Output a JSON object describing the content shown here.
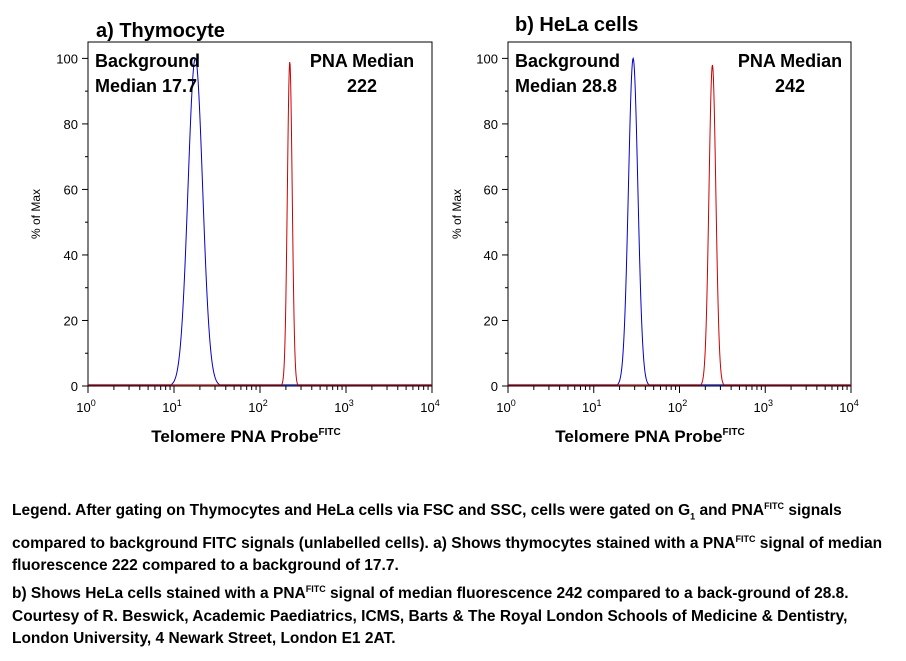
{
  "chart_data": [
    {
      "type": "line",
      "title": "a) Thymocyte",
      "xlabel": "Telomere PNA Probe",
      "xlabel_sup": "FITC",
      "ylabel": "% of Max",
      "xscale": "log",
      "xlim": [
        1,
        10000
      ],
      "ylim": [
        0,
        105
      ],
      "yticks": [
        0,
        20,
        40,
        60,
        80,
        100
      ],
      "xticks": [
        {
          "base": "10",
          "exp": "0"
        },
        {
          "base": "10",
          "exp": "1"
        },
        {
          "base": "10",
          "exp": "2"
        },
        {
          "base": "10",
          "exp": "3"
        },
        {
          "base": "10",
          "exp": "4"
        }
      ],
      "annotations": {
        "background_line1": "Background",
        "background_line2": "Median 17.7",
        "pna_line1": "PNA Median",
        "pna_line2": "222"
      },
      "series": [
        {
          "color": "#0000cc",
          "median": 17.7,
          "peak": 100,
          "width_decades": 0.085
        },
        {
          "color": "#cc0000",
          "median": 222,
          "peak": 99,
          "width_decades": 0.028
        }
      ]
    },
    {
      "type": "line",
      "title": "b) HeLa cells",
      "xlabel": "Telomere PNA Probe",
      "xlabel_sup": "FITC",
      "ylabel": "% of Max",
      "xscale": "log",
      "xlim": [
        1,
        10000
      ],
      "ylim": [
        0,
        105
      ],
      "yticks": [
        0,
        20,
        40,
        60,
        80,
        100
      ],
      "xticks": [
        {
          "base": "10",
          "exp": "0"
        },
        {
          "base": "10",
          "exp": "1"
        },
        {
          "base": "10",
          "exp": "2"
        },
        {
          "base": "10",
          "exp": "3"
        },
        {
          "base": "10",
          "exp": "4"
        }
      ],
      "annotations": {
        "background_line1": "Background",
        "background_line2": "Median 28.8",
        "pna_line1": "PNA Median",
        "pna_line2": "242"
      },
      "series": [
        {
          "color": "#0000cc",
          "median": 28.8,
          "peak": 100,
          "width_decades": 0.055
        },
        {
          "color": "#cc0000",
          "median": 242,
          "peak": 98,
          "width_decades": 0.04
        }
      ]
    }
  ],
  "legend": {
    "p1": "Legend. After gating on Thymocytes and HeLa cells via FSC and SSC, cells were gated on G",
    "p1_sub": "1",
    "p1_b": " and PNA",
    "sup1": "FITC",
    "p2": " signals compared to background FITC signals (unlabelled cells). a) Shows thymocytes stained with a PNA",
    "sup2": "FITC",
    "p3": " signal of median fluorescence 222 compared to a background of 17.7.",
    "p4": "b) Shows HeLa cells stained with a PNA",
    "sup3": "FITC",
    "p5": " signal of median fluorescence 242 compared to a back-ground of 28.8. Courtesy of R. Beswick, Academic Paediatrics, ICMS, Barts & The Royal London Schools of Medicine & Dentistry, London University, 4 Newark Street, London E1 2AT."
  }
}
